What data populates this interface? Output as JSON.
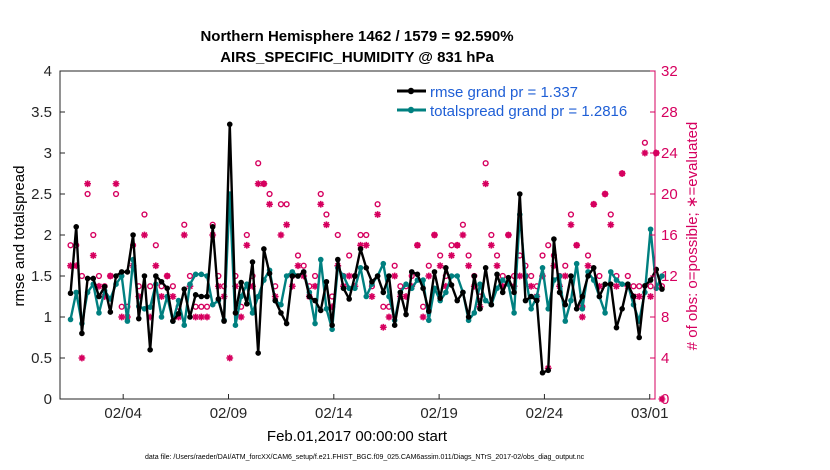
{
  "chart_data": {
    "type": "line",
    "title": "Northern Hemisphere 1462 / 1579 = 92.590%",
    "subtitle": "AIRS_SPECIFIC_HUMIDITY @ 831 hPa",
    "xlabel": "Feb.01,2017 00:00:00 start",
    "ylabel": "rmse and totalspread",
    "ylabel_right": "# of obs: o=possible; ∗=evaluated",
    "footer": "data file: /Users/raeder/DAI/ATM_forcXX/CAM6_setup/f.e21.FHIST_BGC.f09_025.CAM6assim.011/Diags_NTrS_2017-02/obs_diag_output.nc",
    "xlim": [
      1.0,
      29.25
    ],
    "ylim": [
      0,
      4
    ],
    "ylim_right": [
      0,
      32
    ],
    "xticks": [
      4,
      9,
      14,
      19,
      24,
      29
    ],
    "xtick_labels": [
      "02/04",
      "02/09",
      "02/14",
      "02/19",
      "02/24",
      "03/01"
    ],
    "yticks": [
      0,
      0.5,
      1,
      1.5,
      2,
      2.5,
      3,
      3.5,
      4
    ],
    "ytick_labels": [
      "0",
      "0.5",
      "1",
      "1.5",
      "2",
      "2.5",
      "3",
      "3.5",
      "4"
    ],
    "yticks_right": [
      0,
      4,
      8,
      12,
      16,
      20,
      24,
      28,
      32
    ],
    "ytick_labels_right": [
      "0",
      "4",
      "8",
      "12",
      "16",
      "20",
      "24",
      "28",
      "32"
    ],
    "colors": {
      "rmse": "#000000",
      "spread": "#008080",
      "obs": "#d6005f",
      "legend_text": "#1f5fd6"
    },
    "series": [
      {
        "name": "rmse grand pr = 1.337",
        "key": "rmse",
        "values": [
          1.29,
          2.1,
          0.8,
          1.47,
          1.47,
          1.25,
          1.37,
          1.06,
          1.5,
          1.55,
          1.55,
          2.0,
          0.98,
          1.5,
          0.6,
          1.5,
          1.43,
          1.35,
          0.95,
          1.04,
          1.34,
          1.0,
          1.27,
          1.25,
          1.25,
          2.1,
          1.22,
          0.95,
          3.35,
          1.05,
          1.42,
          1.16,
          1.67,
          0.56,
          1.83,
          1.53,
          1.2,
          1.05,
          0.92,
          1.5,
          1.5,
          1.55,
          1.25,
          1.2,
          1.08,
          1.43,
          0.9,
          1.7,
          1.35,
          1.22,
          1.5,
          1.83,
          1.6,
          1.43,
          1.5,
          1.3,
          1.5,
          0.9,
          1.3,
          1.03,
          1.55,
          1.52,
          1.35,
          1.07,
          1.55,
          1.23,
          1.6,
          1.39,
          1.2,
          1.3,
          1.0,
          1.5,
          1.1,
          1.6,
          1.15,
          1.52,
          1.3,
          1.48,
          1.3,
          2.5,
          1.2,
          1.25,
          1.2,
          0.32,
          0.35,
          1.95,
          1.3,
          1.15,
          1.5,
          1.1,
          1.25,
          1.5,
          1.6,
          1.25,
          1.4,
          1.4,
          0.87,
          1.1,
          1.4,
          1.25,
          0.75,
          1.38,
          1.45,
          1.58,
          1.34
        ]
      },
      {
        "name": "totalspread grand pr = 1.2816",
        "key": "spread",
        "values": [
          0.97,
          1.3,
          0.92,
          1.3,
          1.4,
          1.05,
          1.32,
          1.22,
          1.4,
          1.5,
          0.95,
          1.7,
          1.13,
          1.1,
          1.12,
          1.4,
          1.0,
          1.25,
          0.95,
          1.2,
          0.9,
          1.4,
          1.52,
          1.52,
          1.5,
          1.15,
          1.2,
          0.96,
          2.5,
          0.9,
          1.25,
          1.4,
          1.05,
          1.25,
          1.45,
          1.57,
          1.2,
          1.15,
          1.5,
          1.55,
          1.5,
          1.55,
          1.3,
          0.92,
          1.7,
          1.1,
          0.85,
          1.6,
          1.5,
          1.35,
          1.35,
          1.6,
          1.25,
          1.4,
          1.5,
          1.65,
          1.25,
          0.96,
          1.3,
          1.4,
          1.35,
          1.45,
          1.45,
          0.96,
          1.35,
          1.2,
          1.3,
          1.5,
          1.5,
          1.3,
          0.96,
          1.05,
          1.4,
          1.2,
          1.15,
          1.35,
          1.45,
          1.4,
          1.05,
          2.25,
          1.5,
          1.1,
          1.25,
          1.6,
          1.1,
          1.45,
          1.5,
          0.95,
          1.2,
          1.65,
          1.1,
          1.55,
          1.45,
          1.25,
          1.05,
          1.55,
          1.45,
          1.4,
          1.4,
          1.15,
          0.95,
          1.3,
          2.07,
          1.35,
          1.5
        ]
      },
      {
        "name": "possible",
        "key": "possible",
        "axis": "right",
        "values": [
          15,
          15,
          12,
          20,
          16,
          12,
          11,
          12,
          20,
          9,
          9,
          15,
          11,
          18,
          11,
          15,
          11,
          12,
          11,
          9,
          17,
          12,
          9,
          9,
          9,
          17,
          12,
          11,
          18,
          12,
          9,
          16,
          12,
          23,
          21,
          20,
          11,
          19,
          19,
          12,
          14,
          13,
          11,
          12,
          20,
          18,
          10,
          16,
          12,
          14,
          12,
          16,
          16,
          11,
          19,
          9,
          9,
          13,
          11,
          11,
          12,
          15,
          9,
          13,
          16,
          14,
          12,
          15,
          15,
          17,
          14,
          12,
          10,
          23,
          16,
          14,
          12,
          16,
          12,
          14,
          13,
          12,
          11,
          14,
          15,
          14,
          12,
          13,
          18,
          15,
          9,
          14,
          19,
          12,
          20,
          18,
          12,
          22,
          12,
          11,
          11,
          25,
          11,
          24,
          11
        ]
      },
      {
        "name": "evaluated",
        "key": "evaluated",
        "axis": "right",
        "values": [
          13,
          13,
          4,
          21,
          14,
          11,
          10,
          12,
          21,
          8,
          8,
          13,
          10,
          16,
          8,
          13,
          10,
          12,
          10,
          8,
          16,
          11,
          8,
          8,
          8,
          16,
          11,
          10,
          4,
          11,
          8,
          15,
          11,
          21,
          21,
          19,
          10,
          16,
          17,
          11,
          13,
          12,
          10,
          11,
          19,
          17,
          9,
          13,
          11,
          12,
          11,
          15,
          15,
          10,
          18,
          7,
          8,
          12,
          10,
          10,
          11,
          15,
          8,
          12,
          16,
          13,
          11,
          14,
          15,
          16,
          13,
          11,
          9,
          21,
          15,
          13,
          11,
          16,
          11,
          12,
          12,
          11,
          10,
          12,
          3,
          13,
          11,
          12,
          17,
          15,
          8,
          13,
          19,
          11,
          20,
          17,
          11,
          22,
          11,
          10,
          10,
          24,
          10,
          24,
          0
        ]
      }
    ]
  }
}
